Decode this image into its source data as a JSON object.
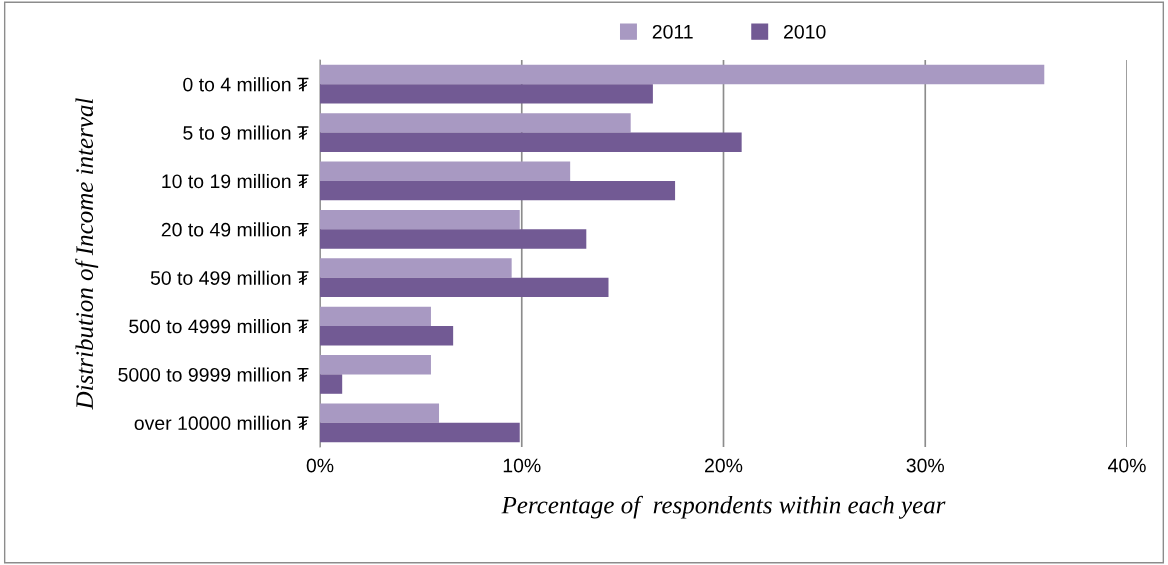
{
  "chart_data": {
    "type": "bar",
    "orientation": "horizontal",
    "categories": [
      "0 to 4 million ₮",
      "5 to 9 million ₮",
      "10 to 19 million ₮",
      "20 to 49 million ₮",
      "50 to 499 million ₮",
      "500 to 4999 million ₮",
      "5000 to 9999 million ₮",
      "over 10000 million ₮"
    ],
    "series": [
      {
        "name": "2011",
        "color": "#a899c2",
        "values": [
          35.9,
          15.4,
          12.4,
          9.9,
          9.5,
          5.5,
          5.5,
          5.9
        ]
      },
      {
        "name": "2010",
        "color": "#725a94",
        "values": [
          16.5,
          20.9,
          17.6,
          13.2,
          14.3,
          6.6,
          1.1,
          9.9
        ]
      }
    ],
    "xlim": [
      0,
      40
    ],
    "xticks": [
      {
        "value": 0,
        "label": "0%"
      },
      {
        "value": 10,
        "label": "10%"
      },
      {
        "value": 20,
        "label": "20%"
      },
      {
        "value": 30,
        "label": "30%"
      },
      {
        "value": 40,
        "label": "40%"
      }
    ],
    "xlabel": "Percentage of  respondents within each year",
    "ylabel": "Distribution of Income interval",
    "grid": "x",
    "legend": "top"
  }
}
